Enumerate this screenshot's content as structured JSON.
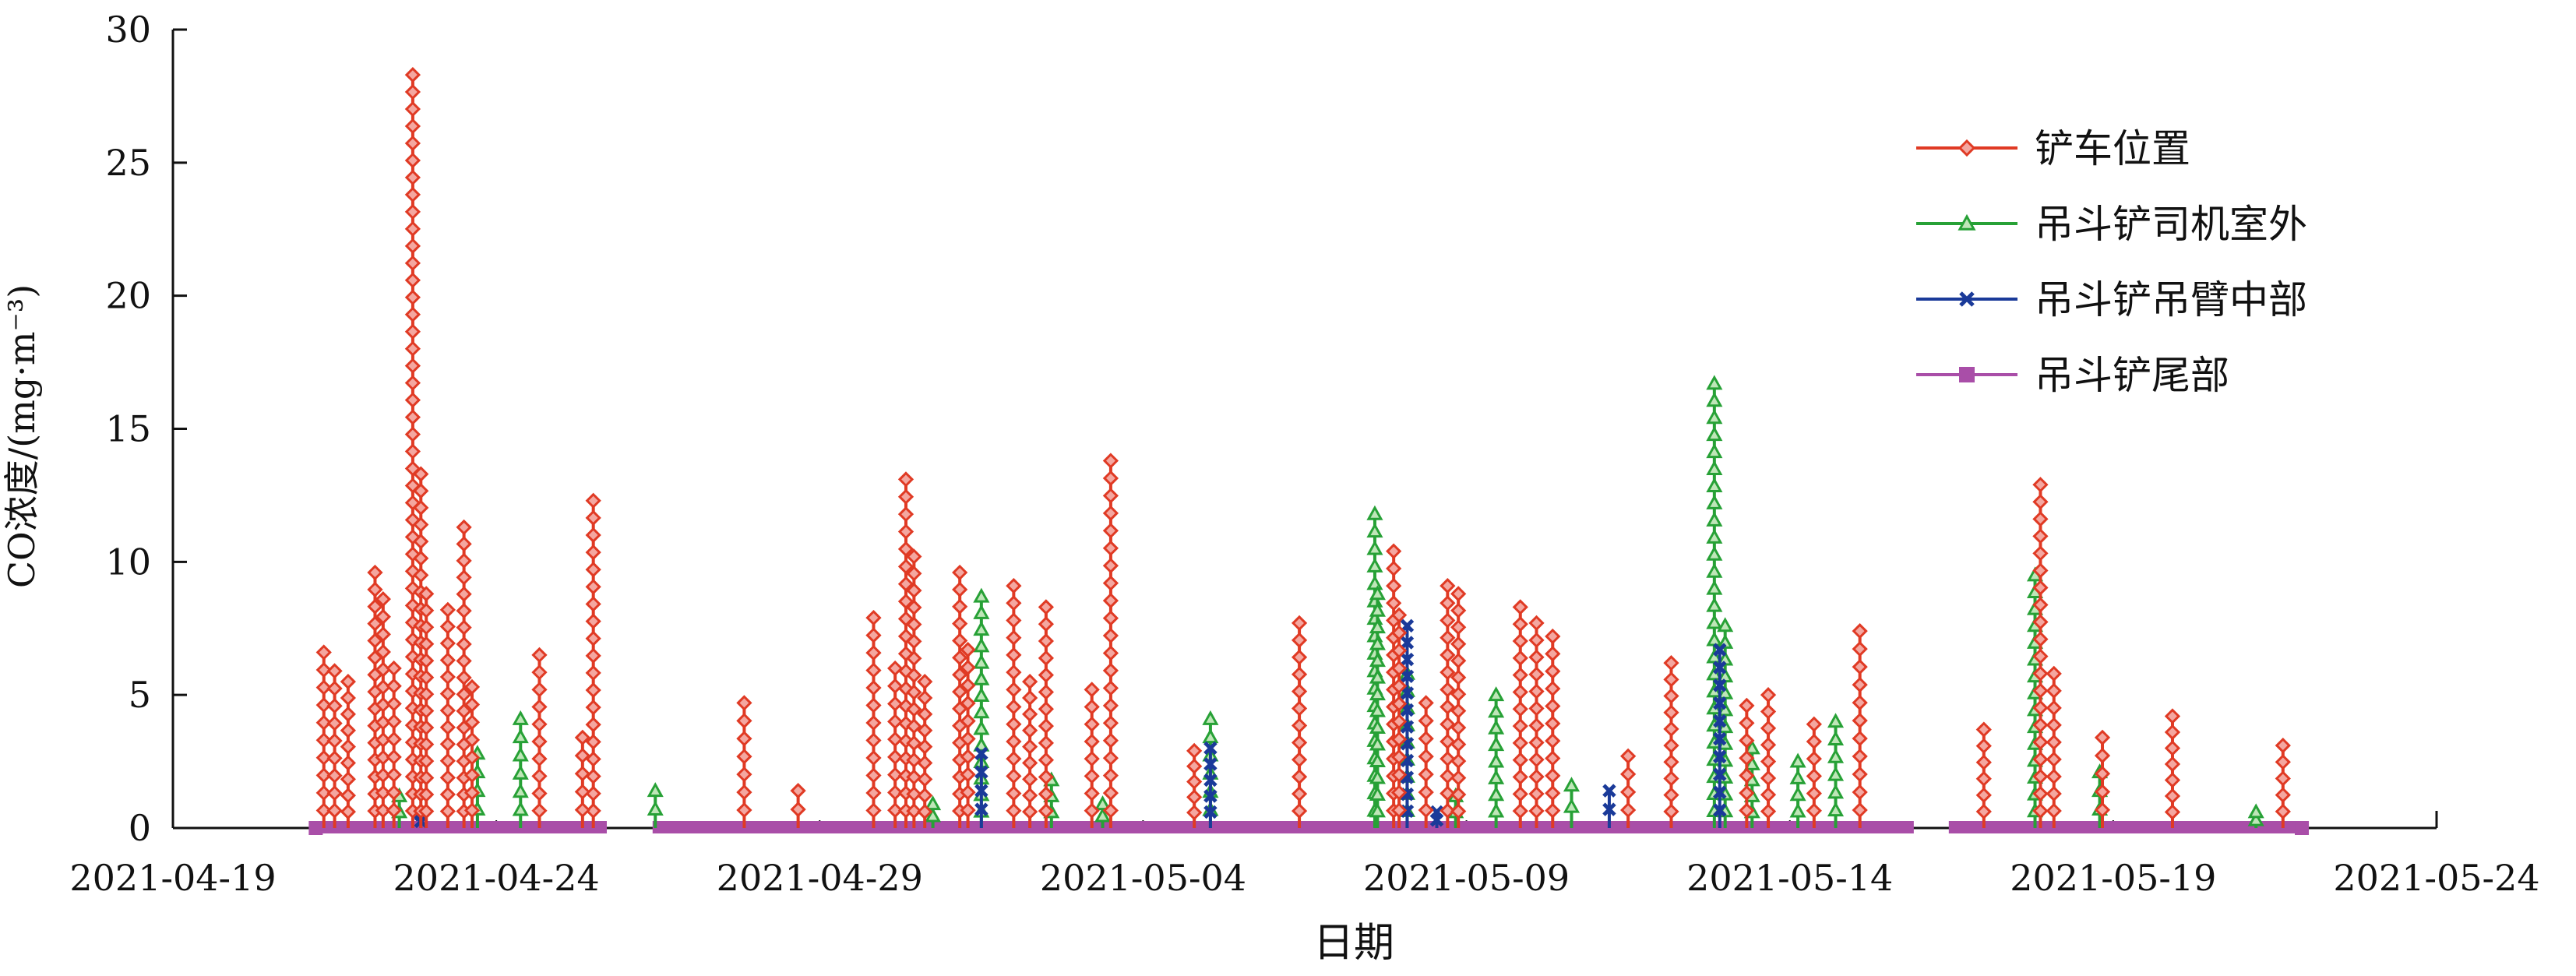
{
  "chart_data": {
    "type": "line",
    "xlabel": "日期",
    "ylabel": "CO浓度/(mg·m⁻³)",
    "ylim": [
      0,
      30
    ],
    "yticks": [
      0,
      5,
      10,
      15,
      20,
      25,
      30
    ],
    "xlim": [
      "2021-04-19",
      "2021-05-24"
    ],
    "xticks": [
      "2021-04-19",
      "2021-04-24",
      "2021-04-29",
      "2021-05-04",
      "2021-05-09",
      "2021-05-14",
      "2021-05-19",
      "2021-05-24"
    ],
    "grid": false,
    "legend_position": "top-right",
    "series": [
      {
        "name": "铲车位置",
        "color": "#e03a24",
        "marker": "diamond",
        "peaks": [
          [
            "2021-04-21T08:00",
            6.6
          ],
          [
            "2021-04-21T12:00",
            5.9
          ],
          [
            "2021-04-21T17:00",
            5.5
          ],
          [
            "2021-04-22T03:00",
            9.6
          ],
          [
            "2021-04-22T06:00",
            8.6
          ],
          [
            "2021-04-22T10:00",
            6.0
          ],
          [
            "2021-04-22T17:00",
            28.3
          ],
          [
            "2021-04-22T20:00",
            13.3
          ],
          [
            "2021-04-22T22:00",
            8.8
          ],
          [
            "2021-04-23T06:00",
            8.2
          ],
          [
            "2021-04-23T12:00",
            11.3
          ],
          [
            "2021-04-23T15:00",
            5.3
          ],
          [
            "2021-04-24T16:00",
            6.5
          ],
          [
            "2021-04-25T12:00",
            12.3
          ],
          [
            "2021-04-25T08:00",
            3.4
          ],
          [
            "2021-04-27T20:00",
            4.7
          ],
          [
            "2021-04-28T16:00",
            1.4
          ],
          [
            "2021-04-29T20:00",
            7.9
          ],
          [
            "2021-04-30T04:00",
            6.0
          ],
          [
            "2021-04-30T08:00",
            13.1
          ],
          [
            "2021-04-30T11:00",
            10.2
          ],
          [
            "2021-04-30T15:00",
            5.5
          ],
          [
            "2021-05-01T04:00",
            9.6
          ],
          [
            "2021-05-01T07:00",
            6.7
          ],
          [
            "2021-05-02T00:00",
            9.1
          ],
          [
            "2021-05-02T06:00",
            5.5
          ],
          [
            "2021-05-02T12:00",
            8.3
          ],
          [
            "2021-05-03T05:00",
            5.2
          ],
          [
            "2021-05-03T12:00",
            13.8
          ],
          [
            "2021-05-04T19:00",
            2.9
          ],
          [
            "2021-05-06T10:00",
            7.7
          ],
          [
            "2021-05-07T21:00",
            10.4
          ],
          [
            "2021-05-07T23:00",
            8.0
          ],
          [
            "2021-05-08T09:00",
            4.7
          ],
          [
            "2021-05-08T17:00",
            9.1
          ],
          [
            "2021-05-08T21:00",
            8.8
          ],
          [
            "2021-05-09T20:00",
            8.3
          ],
          [
            "2021-05-10T02:00",
            7.7
          ],
          [
            "2021-05-10T08:00",
            7.2
          ],
          [
            "2021-05-11T12:00",
            2.7
          ],
          [
            "2021-05-12T04:00",
            6.2
          ],
          [
            "2021-05-13T08:00",
            4.6
          ],
          [
            "2021-05-13T16:00",
            5.0
          ],
          [
            "2021-05-14T09:00",
            3.9
          ],
          [
            "2021-05-15T02:00",
            7.4
          ],
          [
            "2021-05-17T00:00",
            3.7
          ],
          [
            "2021-05-17T21:00",
            12.9
          ],
          [
            "2021-05-18T02:00",
            5.8
          ],
          [
            "2021-05-18T20:00",
            3.4
          ],
          [
            "2021-05-19T22:00",
            4.2
          ],
          [
            "2021-05-21T15:00",
            3.1
          ]
        ]
      },
      {
        "name": "吊斗铲司机室外",
        "color": "#27a136",
        "marker": "triangle",
        "peaks": [
          [
            "2021-04-22T12:00",
            1.2
          ],
          [
            "2021-04-23T17:00",
            2.8
          ],
          [
            "2021-04-24T09:00",
            4.1
          ],
          [
            "2021-04-26T11:00",
            1.4
          ],
          [
            "2021-04-30T18:00",
            0.9
          ],
          [
            "2021-05-01T12:00",
            8.7
          ],
          [
            "2021-05-02T14:00",
            1.8
          ],
          [
            "2021-05-03T09:00",
            0.9
          ],
          [
            "2021-05-05T01:00",
            4.1
          ],
          [
            "2021-05-07T14:00",
            11.8
          ],
          [
            "2021-05-07T15:00",
            8.8
          ],
          [
            "2021-05-08T02:00",
            5.8
          ],
          [
            "2021-05-08T20:00",
            1.2
          ],
          [
            "2021-05-09T11:00",
            5.0
          ],
          [
            "2021-05-10T15:00",
            1.6
          ],
          [
            "2021-05-12T20:00",
            16.7
          ],
          [
            "2021-05-13T00:00",
            7.6
          ],
          [
            "2021-05-13T10:00",
            3.0
          ],
          [
            "2021-05-14T03:00",
            2.5
          ],
          [
            "2021-05-14T17:00",
            4.0
          ],
          [
            "2021-05-17T19:00",
            9.5
          ],
          [
            "2021-05-18T19:00",
            2.1
          ],
          [
            "2021-05-21T05:00",
            0.6
          ]
        ]
      },
      {
        "name": "吊斗铲吊臂中部",
        "color": "#1a3a99",
        "marker": "x",
        "peaks": [
          [
            "2021-04-22T20:00",
            0.5
          ],
          [
            "2021-05-01T12:00",
            2.8
          ],
          [
            "2021-05-05T01:00",
            3.0
          ],
          [
            "2021-05-08T02:00",
            7.6
          ],
          [
            "2021-05-08T13:00",
            0.6
          ],
          [
            "2021-05-11T05:00",
            1.4
          ],
          [
            "2021-05-12T22:00",
            6.7
          ]
        ]
      },
      {
        "name": "吊斗铲尾部",
        "color": "#a94ea8",
        "marker": "square",
        "peaks": [
          [
            "2021-04-21T05:00",
            0.0
          ],
          [
            "2021-05-21T22:00",
            0.0
          ]
        ]
      }
    ],
    "baseline_segments": [
      [
        "2021-04-21T05:00",
        "2021-04-25T17:00"
      ],
      [
        "2021-04-26T10:00",
        "2021-05-05T17:00"
      ],
      [
        "2021-05-04T16:00",
        "2021-05-15T22:00"
      ],
      [
        "2021-05-16T11:00",
        "2021-05-21T22:00"
      ]
    ]
  }
}
